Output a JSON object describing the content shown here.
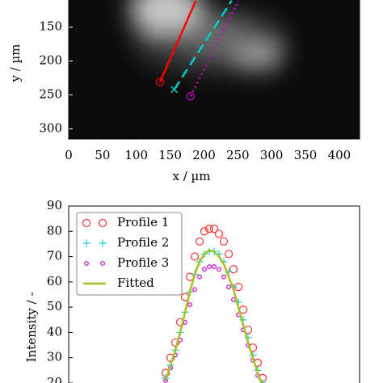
{
  "chart_data": [
    {
      "type": "image",
      "xlabel": "x / µm",
      "ylabel": "y / µm",
      "xlim": [
        0,
        430
      ],
      "ylim": [
        315,
        110
      ],
      "xticks": [
        0,
        50,
        100,
        150,
        200,
        250,
        300,
        350,
        400
      ],
      "yticks": [
        150,
        200,
        250,
        300
      ],
      "series": [
        {
          "color": "#ff0000",
          "dash": "solid",
          "marker": "o",
          "x": [
            135,
            188
          ],
          "values": [
            231,
            111
          ]
        },
        {
          "color": "#00cccc",
          "dash": "dashed",
          "marker": "x",
          "x": [
            156,
            241
          ],
          "values": [
            242,
            111
          ]
        },
        {
          "color": "#cc00cc",
          "dash": "dotted",
          "marker": "o",
          "x": [
            180,
            251
          ],
          "values": [
            252,
            111
          ]
        }
      ]
    },
    {
      "type": "line",
      "ylabel": "Intensity / -",
      "xlim": [
        0,
        120
      ],
      "ylim": [
        20,
        90
      ],
      "yticks": [
        20,
        30,
        40,
        50,
        60,
        70,
        80,
        90
      ],
      "x": [
        40,
        42,
        44,
        46,
        48,
        50,
        52,
        54,
        56,
        58,
        60,
        62,
        64,
        66,
        68,
        70,
        72,
        74,
        76,
        78,
        80
      ],
      "series": [
        {
          "name": "Profile 1",
          "color": "#ff3030",
          "marker": "o",
          "values": [
            24,
            30,
            36,
            44,
            54,
            62,
            70,
            76,
            80,
            81,
            81,
            79,
            76,
            71,
            65,
            58,
            49,
            41,
            34,
            28,
            22
          ]
        },
        {
          "name": "Profile 2",
          "color": "#20c8d8",
          "marker": "+",
          "values": [
            22,
            27,
            33,
            40,
            48,
            56,
            63,
            68,
            71,
            72,
            72,
            71,
            68,
            64,
            58,
            52,
            45,
            38,
            31,
            25,
            20
          ]
        },
        {
          "name": "Profile 3",
          "color": "#cc00cc",
          "marker": "o-small",
          "values": [
            21,
            26,
            31,
            37,
            44,
            51,
            57,
            62,
            65,
            66,
            66,
            65,
            62,
            58,
            53,
            47,
            41,
            35,
            29,
            23,
            19
          ]
        },
        {
          "name": "Fitted",
          "color": "#a8c020",
          "marker": "line",
          "values": [
            21,
            27,
            33,
            40,
            48,
            56,
            63,
            68,
            71,
            72.5,
            72,
            70,
            67,
            62,
            57,
            50,
            43,
            36,
            30,
            24,
            19
          ]
        }
      ],
      "legend": "upper left"
    }
  ]
}
